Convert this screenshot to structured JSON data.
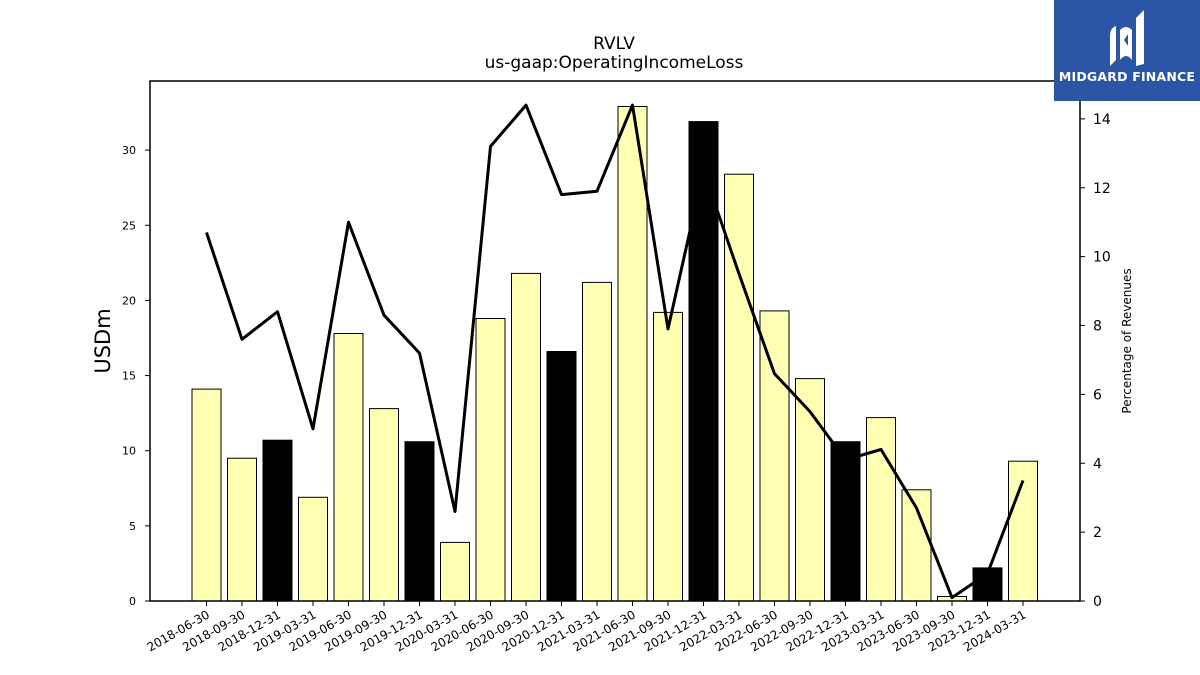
{
  "chart_data": {
    "type": "bar",
    "title": "RVLV",
    "subtitle": "us-gaap:OperatingIncomeLoss",
    "ylabel": "USDm",
    "y2label": "Percentage of Revenues",
    "categories": [
      "2018-06-30",
      "2018-09-30",
      "2018-12-31",
      "2019-03-31",
      "2019-06-30",
      "2019-09-30",
      "2019-12-31",
      "2020-03-31",
      "2020-06-30",
      "2020-09-30",
      "2020-12-31",
      "2021-03-31",
      "2021-06-30",
      "2021-09-30",
      "2021-12-31",
      "2022-03-31",
      "2022-06-30",
      "2022-09-30",
      "2022-12-31",
      "2023-03-31",
      "2023-06-30",
      "2023-09-30",
      "2023-12-31",
      "2024-03-31"
    ],
    "series": [
      {
        "type": "bar",
        "axis": "left",
        "values": [
          14.1,
          9.5,
          10.7,
          6.9,
          17.8,
          12.8,
          10.6,
          3.9,
          18.8,
          21.8,
          16.6,
          21.2,
          32.9,
          19.2,
          31.9,
          28.4,
          19.3,
          14.8,
          10.6,
          12.2,
          7.4,
          0.3,
          2.2,
          9.3
        ],
        "colors": [
          "#ffffb3",
          "#ffffb3",
          "#000000",
          "#ffffb3",
          "#ffffb3",
          "#ffffb3",
          "#000000",
          "#ffffb3",
          "#ffffb3",
          "#ffffb3",
          "#000000",
          "#ffffb3",
          "#ffffb3",
          "#ffffb3",
          "#000000",
          "#ffffb3",
          "#ffffb3",
          "#ffffb3",
          "#000000",
          "#ffffb3",
          "#ffffb3",
          "#ffffb3",
          "#000000",
          "#ffffb3"
        ]
      },
      {
        "type": "line",
        "axis": "right",
        "color": "#000000",
        "values": [
          10.7,
          7.6,
          8.4,
          5.0,
          11.0,
          8.3,
          7.2,
          2.6,
          13.2,
          14.4,
          11.8,
          11.9,
          14.4,
          7.9,
          12.5,
          9.5,
          6.6,
          5.5,
          4.1,
          4.4,
          2.7,
          0.1,
          0.8,
          3.5
        ]
      }
    ],
    "ylim": [
      0,
      34.6
    ],
    "y2lim": [
      0,
      15.1
    ],
    "yticks": [
      0,
      5,
      10,
      15,
      20,
      25,
      30
    ],
    "y2ticks": [
      0,
      2,
      4,
      6,
      8,
      10,
      12,
      14
    ],
    "grid": false
  },
  "logo": {
    "text": "MIDGARD FINANCE",
    "background": "#2b55a5"
  }
}
